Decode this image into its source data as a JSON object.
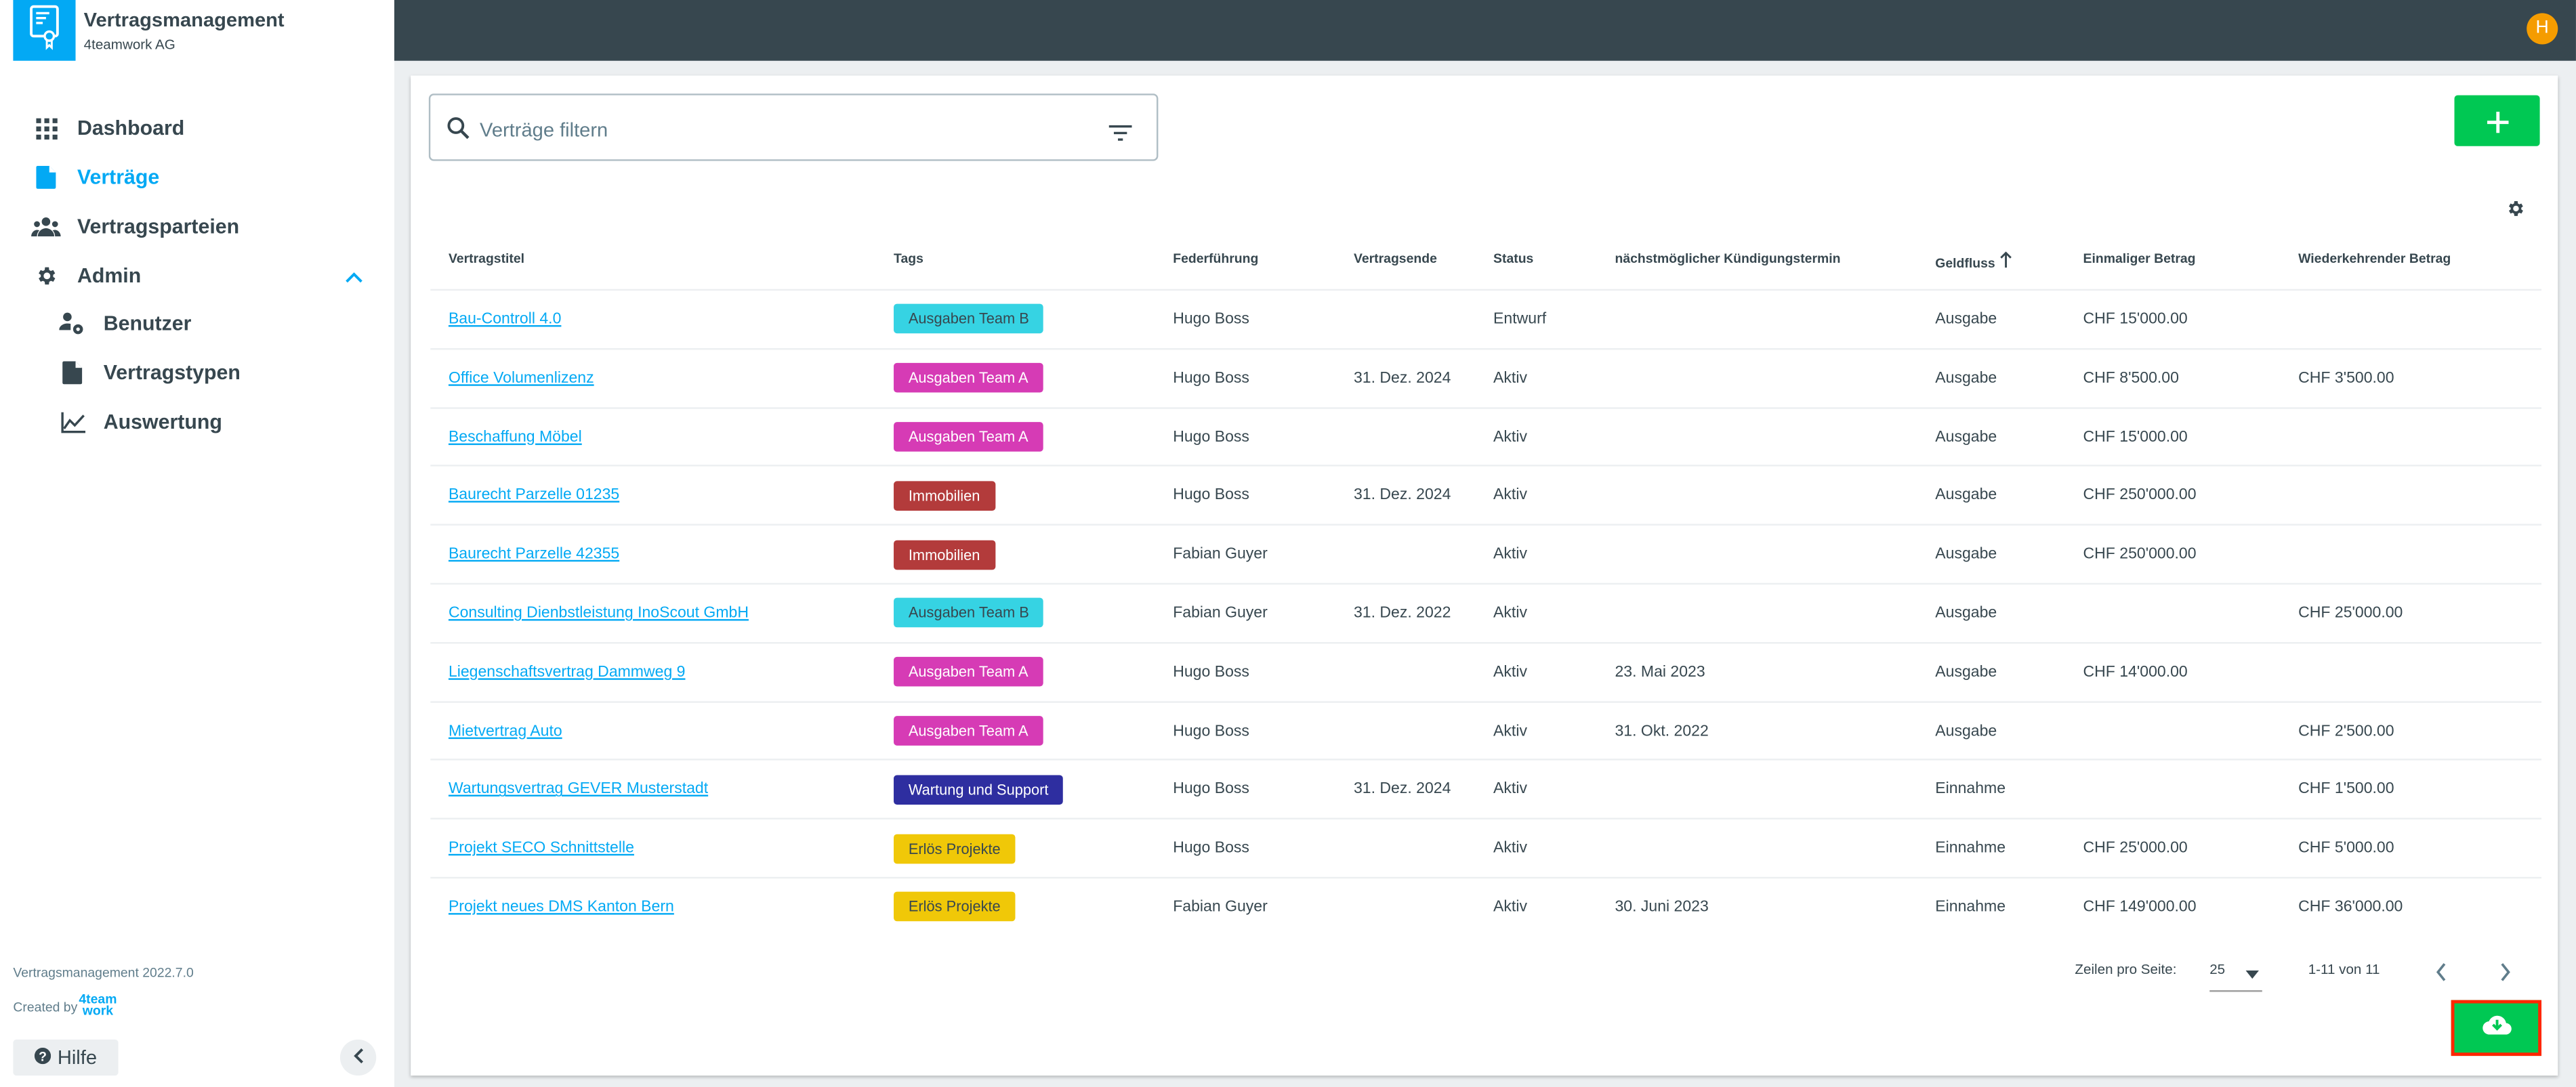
{
  "app": {
    "title": "Vertragsmanagement",
    "company": "4teamwork AG",
    "avatar_initial": "H",
    "version": "Vertragsmanagement 2022.7.0",
    "created_by": "Created by",
    "brand_logo": "4team work"
  },
  "colors": {
    "accent": "#03a9f4",
    "topbar": "#37474f",
    "green": "#00c853"
  },
  "sidebar": {
    "items": [
      {
        "label": "Dashboard",
        "icon": "grid-icon"
      },
      {
        "label": "Verträge",
        "icon": "document-icon",
        "active": true
      },
      {
        "label": "Vertragsparteien",
        "icon": "group-icon"
      },
      {
        "label": "Admin",
        "icon": "gear-icon",
        "expanded": true
      },
      {
        "label": "Benutzer",
        "icon": "user-gear-icon"
      },
      {
        "label": "Vertragstypen",
        "icon": "document-icon"
      },
      {
        "label": "Auswertung",
        "icon": "line-chart-icon"
      }
    ],
    "help_label": "Hilfe"
  },
  "search": {
    "placeholder": "Verträge filtern",
    "value": ""
  },
  "table": {
    "headers": [
      "Vertragstitel",
      "Tags",
      "Federführung",
      "Vertragsende",
      "Status",
      "nächstmöglicher Kündigungstermin",
      "Geldfluss",
      "Einmaliger Betrag",
      "Wiederkehrender Betrag"
    ],
    "sort": {
      "column": "Geldfluss",
      "direction": "asc"
    },
    "rows": [
      {
        "title": "Bau-Controll 4.0",
        "tag": "Ausgaben Team B",
        "tag_color": "#36d3e3",
        "tag_text": "#37474f",
        "lead": "Hugo Boss",
        "end": "",
        "status": "Entwurf",
        "cancel": "",
        "flow": "Ausgabe",
        "once": "CHF 15'000.00",
        "recurring": ""
      },
      {
        "title": "Office Volumenlizenz",
        "tag": "Ausgaben Team A",
        "tag_color": "#d63bb5",
        "tag_text": "#ffffff",
        "lead": "Hugo Boss",
        "end": "31. Dez. 2024",
        "status": "Aktiv",
        "cancel": "",
        "flow": "Ausgabe",
        "once": "CHF 8'500.00",
        "recurring": "CHF 3'500.00"
      },
      {
        "title": "Beschaffung Möbel",
        "tag": "Ausgaben Team A",
        "tag_color": "#d63bb5",
        "tag_text": "#ffffff",
        "lead": "Hugo Boss",
        "end": "",
        "status": "Aktiv",
        "cancel": "",
        "flow": "Ausgabe",
        "once": "CHF 15'000.00",
        "recurring": ""
      },
      {
        "title": "Baurecht Parzelle 01235",
        "tag": "Immobilien",
        "tag_color": "#b33b3b",
        "tag_text": "#ffffff",
        "lead": "Hugo Boss",
        "end": "31. Dez. 2024",
        "status": "Aktiv",
        "cancel": "",
        "flow": "Ausgabe",
        "once": "CHF 250'000.00",
        "recurring": ""
      },
      {
        "title": "Baurecht Parzelle 42355",
        "tag": "Immobilien",
        "tag_color": "#b33b3b",
        "tag_text": "#ffffff",
        "lead": "Fabian Guyer",
        "end": "",
        "status": "Aktiv",
        "cancel": "",
        "flow": "Ausgabe",
        "once": "CHF 250'000.00",
        "recurring": ""
      },
      {
        "title": "Consulting Dienbstleistung InoScout GmbH",
        "tag": "Ausgaben Team B",
        "tag_color": "#36d3e3",
        "tag_text": "#37474f",
        "lead": "Fabian Guyer",
        "end": "31. Dez. 2022",
        "status": "Aktiv",
        "cancel": "",
        "flow": "Ausgabe",
        "once": "",
        "recurring": "CHF 25'000.00"
      },
      {
        "title": "Liegenschaftsvertrag Dammweg 9",
        "tag": "Ausgaben Team A",
        "tag_color": "#d63bb5",
        "tag_text": "#ffffff",
        "lead": "Hugo Boss",
        "end": "",
        "status": "Aktiv",
        "cancel": "23. Mai 2023",
        "flow": "Ausgabe",
        "once": "CHF 14'000.00",
        "recurring": ""
      },
      {
        "title": "Mietvertrag Auto",
        "tag": "Ausgaben Team A",
        "tag_color": "#d63bb5",
        "tag_text": "#ffffff",
        "lead": "Hugo Boss",
        "end": "",
        "status": "Aktiv",
        "cancel": "31. Okt. 2022",
        "flow": "Ausgabe",
        "once": "",
        "recurring": "CHF 2'500.00"
      },
      {
        "title": "Wartungsvertrag GEVER Musterstadt",
        "tag": "Wartung und Support",
        "tag_color": "#2e2ea0",
        "tag_text": "#ffffff",
        "lead": "Hugo Boss",
        "end": "31. Dez. 2024",
        "status": "Aktiv",
        "cancel": "",
        "flow": "Einnahme",
        "once": "",
        "recurring": "CHF 1'500.00"
      },
      {
        "title": "Projekt SECO Schnittstelle",
        "tag": "Erlös Projekte",
        "tag_color": "#f0c808",
        "tag_text": "#37474f",
        "lead": "Hugo Boss",
        "end": "",
        "status": "Aktiv",
        "cancel": "",
        "flow": "Einnahme",
        "once": "CHF 25'000.00",
        "recurring": "CHF 5'000.00"
      },
      {
        "title": "Projekt neues DMS Kanton Bern",
        "tag": "Erlös Projekte",
        "tag_color": "#f0c808",
        "tag_text": "#37474f",
        "lead": "Fabian Guyer",
        "end": "",
        "status": "Aktiv",
        "cancel": "30. Juni 2023",
        "flow": "Einnahme",
        "once": "CHF 149'000.00",
        "recurring": "CHF 36'000.00"
      }
    ]
  },
  "pagination": {
    "rows_label": "Zeilen pro Seite:",
    "rows_per_page": "25",
    "range": "1-11 von 11"
  }
}
